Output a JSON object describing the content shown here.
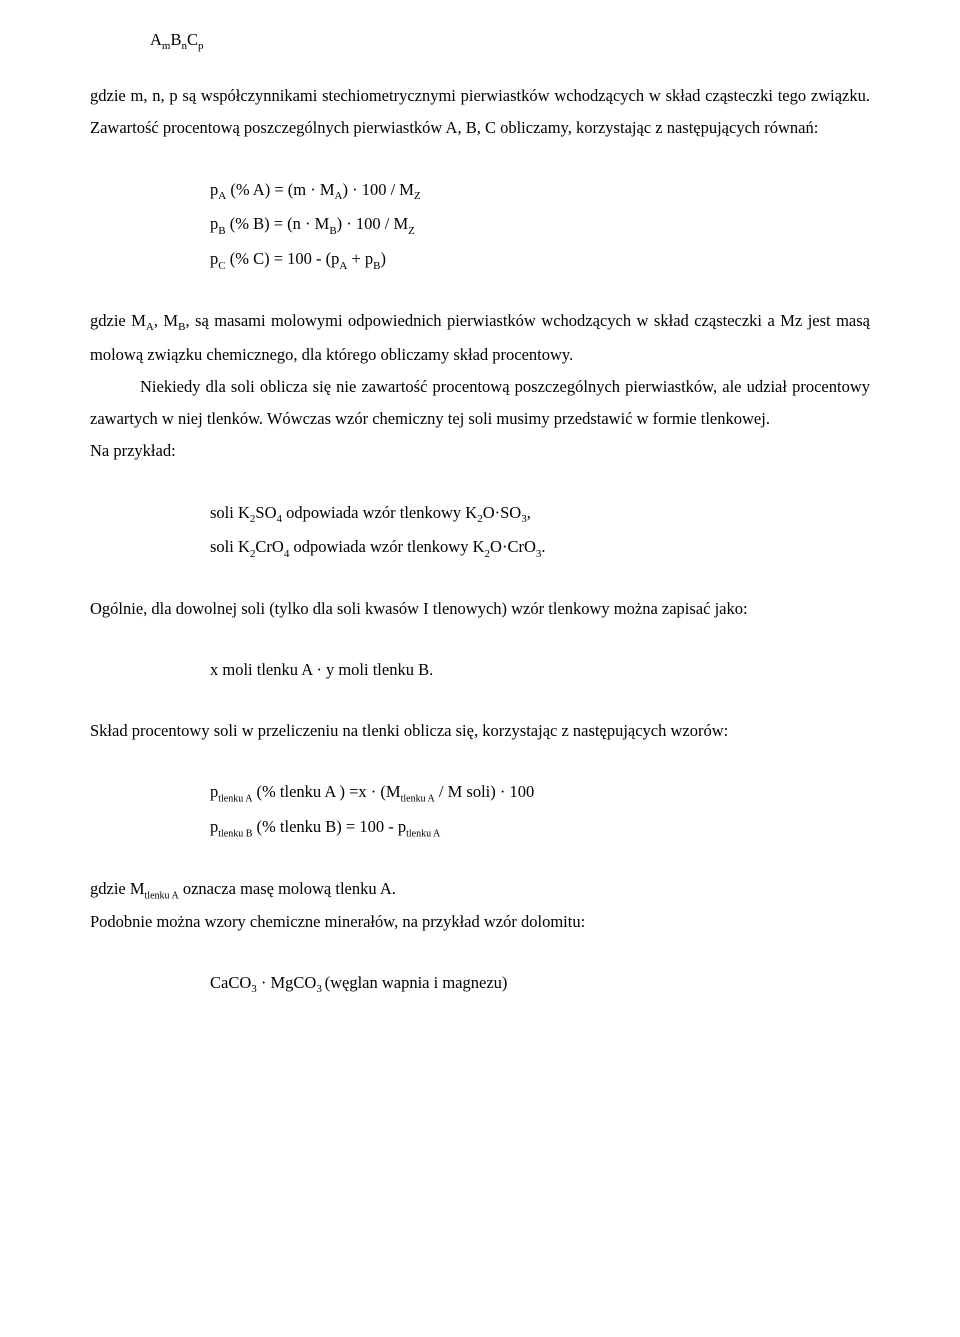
{
  "text_color": "#000000",
  "background_color": "#ffffff",
  "font_family": "Times New Roman",
  "body_font_size_pt": 12,
  "line_spacing": 2.0,
  "formula_top": {
    "text": "AₘBₙCₚ"
  },
  "para1": "gdzie m, n, p są współczynnikami stechiometrycznymi pierwiastków wchodzących w skład cząsteczki tego związku. Zawartość procentową poszczególnych pierwiastków A, B, C obliczamy, korzystając z następujących równań:",
  "formulas1": {
    "line1": "p_A (% A) = (m · M_A) · 100 / M_Z",
    "line2": "p_B (% B) = (n · M_B) · 100 / M_Z",
    "line3": "p_C (% C) = 100 - (p_A + p_B)"
  },
  "para2": "gdzie M_A, M_B, są masami molowymi odpowiednich pierwiastków wchodzących w skład cząsteczki a Mz jest masą molową związku chemicznego, dla którego obliczamy skład procentowy.",
  "para3": "Niekiedy dla soli oblicza się nie zawartość procentową poszczególnych pierwiastków, ale udział procentowy zawartych w niej tlenków. Wówczas wzór chemiczny tej soli musimy przedstawić w formie tlenkowej.",
  "para4": "Na przykład:",
  "formulas2": {
    "line1": "soli K₂SO₄ odpowiada wzór tlenkowy K₂O·SO₃,",
    "line2": "soli K₂CrO₄ odpowiada wzór tlenkowy K₂O·CrO₃."
  },
  "para5": "Ogólnie, dla dowolnej soli (tylko dla soli kwasów I tlenowych) wzór tlenkowy można zapisać jako:",
  "formulas3": {
    "line1": "x moli tlenku A · y moli tlenku B."
  },
  "para6": "Skład procentowy soli w przeliczeniu na tlenki oblicza się, korzystając z następujących wzorów:",
  "formulas4": {
    "line1": "p_tlenku A (% tlenku A ) =x · (M_tlenku A  / M soli) · 100",
    "line2": "p_tlenku B (% tlenku B) = 100 - p_tlenku A"
  },
  "para7": "gdzie M_tlenku A oznacza masę molową tlenku A.",
  "para8": "Podobnie można wzory chemiczne minerałów, na przykład wzór dolomitu:",
  "formulas5": {
    "line1": "CaCO₃ · MgCO₃ (węglan wapnia i magnezu)"
  }
}
